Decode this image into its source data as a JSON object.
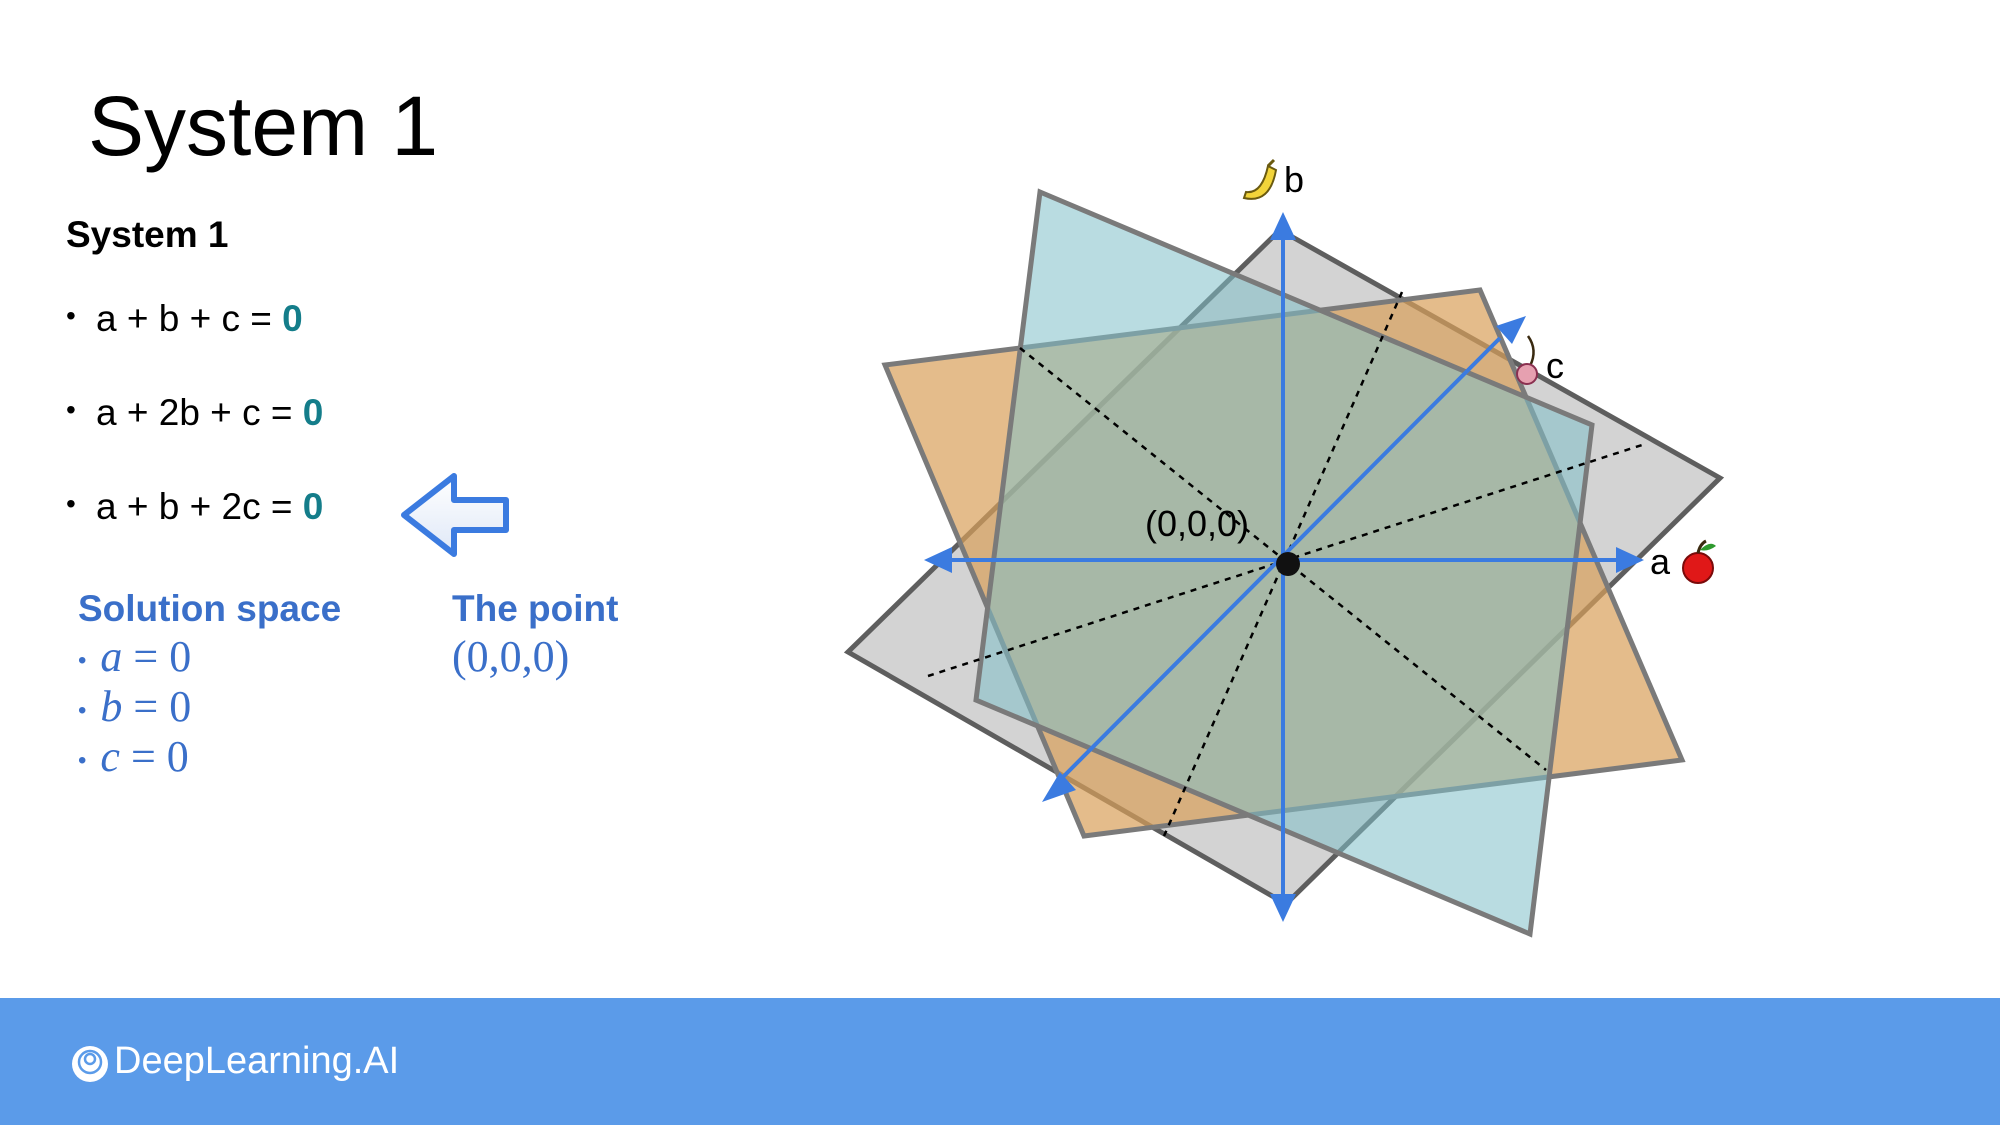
{
  "slide": {
    "title": "System 1",
    "subtitle": "System 1",
    "equations": [
      {
        "lhs": "a + b + c = ",
        "rhs": "0"
      },
      {
        "lhs": "a + 2b + c = ",
        "rhs": "0"
      },
      {
        "lhs": "a + b + 2c = ",
        "rhs": "0"
      }
    ],
    "solution_heading": "Solution space",
    "solution": [
      {
        "var": "a",
        "eq": " = 0"
      },
      {
        "var": "b",
        "eq": " = 0"
      },
      {
        "var": "c",
        "eq": " = 0"
      }
    ],
    "point_heading": "The point",
    "point_value": "(0,0,0)"
  },
  "diagram": {
    "origin_label": "(0,0,0)",
    "axis_a": "a",
    "axis_b": "b",
    "axis_c": "c",
    "axis_color": "#3b7be0",
    "plane_colors": [
      "#7fbfc9",
      "#d9a05a",
      "#a8a8a8"
    ]
  },
  "footer": {
    "brand": "DeepLearning.AI",
    "color": "#5b9be9"
  }
}
